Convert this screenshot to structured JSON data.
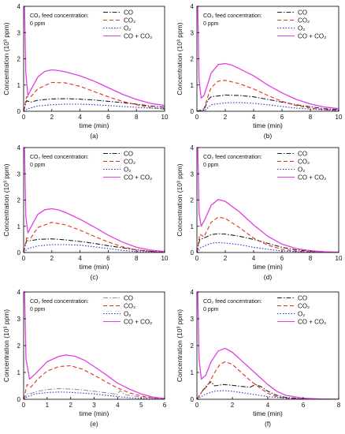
{
  "colors": {
    "CO": "#222222",
    "CO2": "#e0301e",
    "O2": "#2b2bd6",
    "sum": "#e33de3",
    "CO_e": "#8a9a9c",
    "axis": "#000000"
  },
  "chart_data": [
    {
      "type": "line",
      "panel": "(a)",
      "annotation": [
        "CO₂ feed concentration:",
        "0 ppm"
      ],
      "xlabel": "time (min)",
      "ylabel": "Concentration (10³ ppm)",
      "xlim": [
        0,
        10
      ],
      "ylim": [
        0,
        4
      ],
      "xticks": [
        0,
        2,
        4,
        6,
        8,
        10
      ],
      "yticks": [
        0,
        1,
        2,
        3,
        4
      ],
      "legend_position": "top-right",
      "series": [
        {
          "name": "CO",
          "style": "dashdot",
          "x": [
            0,
            0.2,
            0.5,
            1,
            2,
            3,
            4,
            5,
            6,
            7,
            8,
            9,
            10
          ],
          "y": [
            0,
            0.4,
            0.35,
            0.42,
            0.47,
            0.48,
            0.46,
            0.43,
            0.38,
            0.33,
            0.27,
            0.2,
            0.15
          ]
        },
        {
          "name": "CO₂",
          "style": "dashed",
          "x": [
            0,
            0.2,
            0.5,
            1,
            2,
            3,
            4,
            5,
            6,
            7,
            8,
            9,
            10
          ],
          "y": [
            0,
            0.55,
            0.55,
            0.85,
            1.1,
            1.08,
            0.95,
            0.75,
            0.55,
            0.38,
            0.25,
            0.15,
            0.08
          ]
        },
        {
          "name": "O₂",
          "style": "dotted",
          "x": [
            0,
            0.3,
            1,
            2,
            3,
            4,
            5,
            6,
            7,
            8,
            9,
            10
          ],
          "y": [
            0,
            0.1,
            0.2,
            0.25,
            0.27,
            0.27,
            0.25,
            0.22,
            0.18,
            0.15,
            0.12,
            0.1
          ]
        },
        {
          "name": "CO + CO₂",
          "style": "solid",
          "x": [
            0,
            0.06,
            0.15,
            0.3,
            0.6,
            1,
            1.5,
            2,
            2.5,
            3,
            4,
            5,
            6,
            7,
            8,
            9,
            10
          ],
          "y": [
            4,
            4,
            1.5,
            0.6,
            0.9,
            1.3,
            1.52,
            1.58,
            1.55,
            1.5,
            1.35,
            1.15,
            0.9,
            0.65,
            0.45,
            0.3,
            0.22
          ]
        }
      ]
    },
    {
      "type": "line",
      "panel": "(b)",
      "annotation": [
        "CO₂ feed concentration:",
        "0 ppm"
      ],
      "xlabel": "time (min)",
      "ylabel": "Concentration (10³ ppm)",
      "xlim": [
        0,
        10
      ],
      "ylim": [
        0,
        4
      ],
      "xticks": [
        0,
        2,
        4,
        6,
        8,
        10
      ],
      "yticks": [
        0,
        1,
        2,
        3,
        4
      ],
      "legend_position": "top-right",
      "series": [
        {
          "name": "CO",
          "style": "dashdot",
          "x": [
            0,
            0.5,
            0.8,
            1,
            2,
            3,
            4,
            5,
            6,
            7,
            8,
            9,
            10
          ],
          "y": [
            0,
            0.05,
            0.45,
            0.55,
            0.62,
            0.6,
            0.55,
            0.45,
            0.35,
            0.25,
            0.17,
            0.1,
            0.06
          ]
        },
        {
          "name": "CO₂",
          "style": "dashed",
          "x": [
            0,
            0.5,
            0.8,
            1,
            1.5,
            2,
            3,
            4,
            5,
            6,
            7,
            8,
            9,
            10
          ],
          "y": [
            0,
            0.1,
            0.6,
            0.9,
            1.15,
            1.18,
            1.05,
            0.85,
            0.6,
            0.38,
            0.22,
            0.12,
            0.06,
            0.03
          ]
        },
        {
          "name": "O₂",
          "style": "dotted",
          "x": [
            0,
            0.6,
            1,
            2,
            3,
            4,
            5,
            6,
            7,
            8,
            9,
            10
          ],
          "y": [
            0,
            0.05,
            0.25,
            0.32,
            0.33,
            0.3,
            0.25,
            0.18,
            0.12,
            0.08,
            0.05,
            0.03
          ]
        },
        {
          "name": "CO + CO₂",
          "style": "solid",
          "x": [
            0,
            0.06,
            0.15,
            0.3,
            0.5,
            0.8,
            1,
            1.5,
            2,
            2.5,
            3,
            4,
            5,
            6,
            7,
            8,
            9,
            10
          ],
          "y": [
            4,
            4,
            1.2,
            0.5,
            0.6,
            1.1,
            1.45,
            1.78,
            1.82,
            1.75,
            1.62,
            1.35,
            1.0,
            0.7,
            0.45,
            0.28,
            0.16,
            0.1
          ]
        }
      ]
    },
    {
      "type": "line",
      "panel": "(c)",
      "annotation": [
        "CO₂ feed concentration:",
        "0 ppm"
      ],
      "xlabel": "time (min)",
      "ylabel": "Concentration (10³ ppm)",
      "xlim": [
        0,
        10
      ],
      "ylim": [
        0,
        4
      ],
      "xticks": [
        0,
        2,
        4,
        6,
        8,
        10
      ],
      "yticks": [
        0,
        1,
        2,
        3,
        4
      ],
      "legend_position": "top-right",
      "series": [
        {
          "name": "CO",
          "style": "dashdot",
          "x": [
            0,
            0.2,
            0.5,
            1,
            2,
            3,
            4,
            5,
            6,
            7,
            8,
            9,
            10
          ],
          "y": [
            0,
            0.45,
            0.45,
            0.5,
            0.52,
            0.48,
            0.42,
            0.35,
            0.26,
            0.18,
            0.1,
            0.05,
            0.02
          ]
        },
        {
          "name": "CO₂",
          "style": "dashed",
          "x": [
            0,
            0.2,
            0.5,
            1,
            2,
            3,
            4,
            5,
            6,
            7,
            8,
            9,
            10
          ],
          "y": [
            0,
            0.55,
            0.55,
            0.95,
            1.15,
            1.05,
            0.85,
            0.62,
            0.4,
            0.22,
            0.1,
            0.04,
            0.02
          ]
        },
        {
          "name": "O₂",
          "style": "dotted",
          "x": [
            0,
            0.3,
            1,
            2,
            3,
            4,
            5,
            6,
            7,
            8,
            9,
            10
          ],
          "y": [
            0,
            0.15,
            0.25,
            0.3,
            0.3,
            0.28,
            0.22,
            0.15,
            0.08,
            0.04,
            0.02,
            0.01
          ]
        },
        {
          "name": "CO + CO₂",
          "style": "solid",
          "x": [
            0,
            0.06,
            0.15,
            0.3,
            0.6,
            1,
            1.5,
            2,
            2.5,
            3,
            4,
            5,
            6,
            7,
            8,
            9,
            10
          ],
          "y": [
            4,
            4,
            1.4,
            0.75,
            1.05,
            1.45,
            1.63,
            1.67,
            1.62,
            1.52,
            1.27,
            0.97,
            0.66,
            0.4,
            0.2,
            0.09,
            0.04
          ]
        }
      ]
    },
    {
      "type": "line",
      "panel": "(d)",
      "annotation": [
        "CO₂ feed concentration:",
        "0 ppm"
      ],
      "xlabel": "time (min)",
      "ylabel": "Concentration (10³ ppm)",
      "xlim": [
        0,
        10
      ],
      "ylim": [
        0,
        4
      ],
      "xticks": [
        0,
        2,
        4,
        6,
        8,
        10
      ],
      "yticks": [
        0,
        1,
        2,
        3,
        4
      ],
      "legend_position": "top-right",
      "series": [
        {
          "name": "CO",
          "style": "dashdot",
          "x": [
            0,
            0.2,
            0.5,
            1,
            1.5,
            2,
            3,
            4,
            5,
            6,
            7,
            8,
            9,
            10
          ],
          "y": [
            0,
            0.5,
            0.55,
            0.68,
            0.72,
            0.7,
            0.62,
            0.5,
            0.35,
            0.2,
            0.1,
            0.05,
            0.02,
            0.01
          ]
        },
        {
          "name": "CO₂",
          "style": "dashed",
          "x": [
            0,
            0.2,
            0.5,
            1,
            1.5,
            2,
            3,
            4,
            5,
            6,
            7,
            8,
            9,
            10
          ],
          "y": [
            0,
            0.7,
            0.6,
            1.15,
            1.35,
            1.3,
            0.95,
            0.55,
            0.28,
            0.12,
            0.05,
            0.02,
            0.01,
            0
          ]
        },
        {
          "name": "O₂",
          "style": "dotted",
          "x": [
            0,
            0.3,
            1,
            1.5,
            2,
            3,
            4,
            5,
            6,
            7,
            8,
            10
          ],
          "y": [
            0,
            0.2,
            0.35,
            0.38,
            0.36,
            0.3,
            0.2,
            0.12,
            0.06,
            0.03,
            0.01,
            0
          ]
        },
        {
          "name": "CO + CO₂",
          "style": "solid",
          "x": [
            0,
            0.06,
            0.15,
            0.3,
            0.6,
            1,
            1.5,
            2,
            2.5,
            3,
            4,
            5,
            6,
            7,
            8,
            9,
            10
          ],
          "y": [
            4,
            4,
            1.5,
            1.0,
            1.3,
            1.8,
            2.02,
            1.95,
            1.75,
            1.55,
            1.05,
            0.62,
            0.32,
            0.15,
            0.07,
            0.03,
            0.01
          ]
        }
      ]
    },
    {
      "type": "line",
      "panel": "(e)",
      "annotation": [
        "CO₂ feed concentration:",
        "0 ppm"
      ],
      "xlabel": "time (min)",
      "ylabel": "Concentration (10³ ppm)",
      "xlim": [
        0,
        6
      ],
      "ylim": [
        0,
        4
      ],
      "xticks": [
        0,
        1,
        2,
        3,
        4,
        5,
        6
      ],
      "yticks": [
        0,
        1,
        2,
        3,
        4
      ],
      "legend_position": "top-right",
      "series": [
        {
          "name": "CO",
          "style": "dashdot",
          "x": [
            0,
            0.15,
            0.3,
            0.6,
            1,
            1.5,
            2,
            2.5,
            3,
            3.5,
            4,
            4.1,
            4.3,
            4.5,
            5,
            5.5,
            6
          ],
          "y": [
            0,
            0.2,
            0.22,
            0.3,
            0.36,
            0.4,
            0.38,
            0.35,
            0.3,
            0.24,
            0.18,
            0.32,
            0.18,
            0.14,
            0.08,
            0.04,
            0.02
          ]
        },
        {
          "name": "CO₂",
          "style": "dashed",
          "x": [
            0,
            0.15,
            0.3,
            0.6,
            1,
            1.5,
            2,
            2.5,
            3,
            3.5,
            4,
            4.5,
            5,
            5.5,
            6
          ],
          "y": [
            0,
            0.55,
            0.45,
            0.75,
            1.05,
            1.22,
            1.25,
            1.12,
            0.9,
            0.65,
            0.42,
            0.24,
            0.12,
            0.05,
            0.02
          ]
        },
        {
          "name": "O₂",
          "style": "dotted",
          "x": [
            0,
            0.15,
            0.5,
            1,
            1.5,
            2,
            2.5,
            3,
            3.5,
            4,
            4.5,
            5,
            5.5,
            6
          ],
          "y": [
            0,
            0.1,
            0.2,
            0.25,
            0.27,
            0.26,
            0.23,
            0.2,
            0.15,
            0.1,
            0.06,
            0.03,
            0.01,
            0
          ]
        },
        {
          "name": "CO + CO₂",
          "style": "solid",
          "x": [
            0,
            0.04,
            0.1,
            0.25,
            0.5,
            1,
            1.5,
            1.8,
            2.2,
            2.6,
            3,
            3.5,
            4,
            4.5,
            5,
            5.5,
            6
          ],
          "y": [
            4,
            4,
            1.5,
            0.75,
            0.95,
            1.4,
            1.6,
            1.65,
            1.6,
            1.45,
            1.22,
            0.92,
            0.6,
            0.38,
            0.2,
            0.08,
            0.03
          ]
        }
      ]
    },
    {
      "type": "line",
      "panel": "(f)",
      "annotation": [
        "CO₂ feed concentration:",
        "0 ppm"
      ],
      "xlabel": "time (min)",
      "ylabel": "Concentration (10³ ppm)",
      "xlim": [
        0,
        8
      ],
      "ylim": [
        0,
        4
      ],
      "xticks": [
        0,
        2,
        4,
        6,
        8
      ],
      "yticks": [
        0,
        1,
        2,
        3,
        4
      ],
      "legend_position": "top-right",
      "series": [
        {
          "name": "CO",
          "style": "dashdot",
          "x": [
            0,
            0.3,
            0.6,
            0.8,
            1,
            1.5,
            2,
            2.5,
            3,
            3.3,
            3.6,
            4,
            4.5,
            5,
            6,
            7,
            8
          ],
          "y": [
            0,
            0.3,
            0.55,
            0.65,
            0.5,
            0.55,
            0.52,
            0.48,
            0.45,
            0.55,
            0.48,
            0.3,
            0.15,
            0.07,
            0.02,
            0.01,
            0
          ]
        },
        {
          "name": "CO₂",
          "style": "dashed",
          "x": [
            0,
            0.3,
            0.6,
            1,
            1.3,
            1.6,
            2,
            2.5,
            3,
            3.5,
            4,
            4.5,
            5,
            6,
            7,
            8
          ],
          "y": [
            0,
            0.3,
            0.5,
            1.0,
            1.3,
            1.4,
            1.3,
            1.0,
            0.7,
            0.45,
            0.22,
            0.1,
            0.04,
            0.01,
            0,
            0
          ]
        },
        {
          "name": "O₂",
          "style": "dotted",
          "x": [
            0,
            0.5,
            1,
            1.5,
            2,
            2.5,
            3,
            3.5,
            4,
            5,
            6,
            8
          ],
          "y": [
            0,
            0.2,
            0.3,
            0.32,
            0.3,
            0.25,
            0.2,
            0.15,
            0.1,
            0.04,
            0.01,
            0
          ]
        },
        {
          "name": "CO + CO₂",
          "style": "solid",
          "x": [
            0,
            0.05,
            0.12,
            0.25,
            0.5,
            0.8,
            1.2,
            1.6,
            2,
            2.5,
            3,
            3.5,
            4,
            4.5,
            5,
            6,
            7,
            8
          ],
          "y": [
            4,
            4,
            1.5,
            0.75,
            0.9,
            1.4,
            1.8,
            1.9,
            1.75,
            1.45,
            1.15,
            0.85,
            0.55,
            0.3,
            0.15,
            0.04,
            0.01,
            0
          ]
        }
      ]
    }
  ]
}
